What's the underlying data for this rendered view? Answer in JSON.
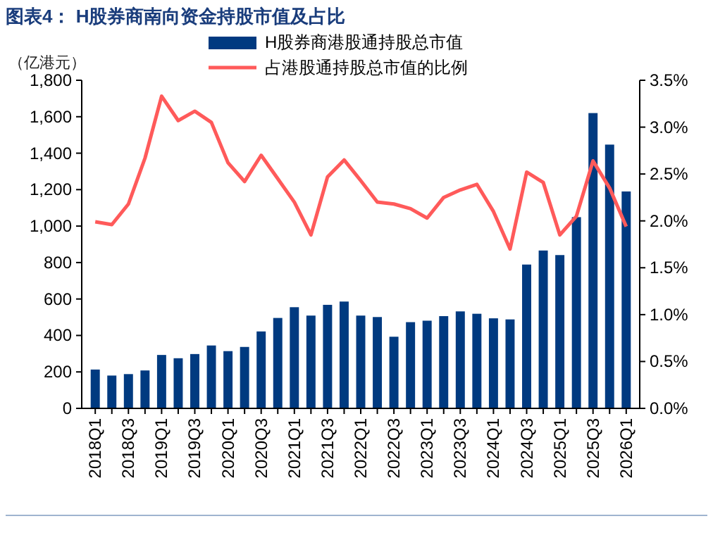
{
  "chart_data": {
    "type": "bar",
    "title": "图表4： H股券商南向资金持股市值及占比",
    "ylabel": "（亿港元）",
    "categories": [
      "2018Q1",
      null,
      "2018Q3",
      null,
      "2019Q1",
      null,
      "2019Q3",
      null,
      "2020Q1",
      null,
      "2020Q3",
      null,
      "2021Q1",
      null,
      "2021Q3",
      null,
      "2022Q1",
      null,
      "2022Q3",
      null,
      "2023Q1",
      null,
      "2023Q3",
      null,
      "2024Q1",
      null,
      "2024Q3",
      null,
      "2025Q1",
      null,
      "2025Q3",
      null,
      "2026Q1"
    ],
    "series": [
      {
        "name": "H股券商港股通持股总市值",
        "color": "#003a80",
        "values": [
          213,
          180,
          188,
          208,
          293,
          275,
          298,
          345,
          314,
          337,
          422,
          496,
          555,
          509,
          568,
          586,
          509,
          501,
          393,
          473,
          481,
          506,
          532,
          519,
          494,
          488,
          789,
          866,
          841,
          1049,
          1620,
          1447,
          1190
        ]
      },
      {
        "name": "占港股通持股总市值的比例",
        "type": "line",
        "axis": "y2",
        "color": "#ff5a5a",
        "values": [
          1.99,
          1.96,
          2.18,
          2.67,
          3.33,
          3.07,
          3.17,
          3.05,
          2.62,
          2.42,
          2.7,
          2.45,
          2.2,
          1.85,
          2.47,
          2.65,
          2.43,
          2.2,
          2.18,
          2.13,
          2.03,
          2.25,
          2.33,
          2.39,
          2.1,
          1.7,
          2.52,
          2.41,
          1.85,
          2.05,
          2.64,
          2.35,
          1.94
        ]
      }
    ],
    "ylim": [
      0,
      1800
    ],
    "yticks": [
      {
        "value": 0,
        "label": "0"
      },
      {
        "value": 200,
        "label": "200"
      },
      {
        "value": 400,
        "label": "400"
      },
      {
        "value": 600,
        "label": "600"
      },
      {
        "value": 800,
        "label": "800"
      },
      {
        "value": 1000,
        "label": "1,000"
      },
      {
        "value": 1200,
        "label": "1,200"
      },
      {
        "value": 1400,
        "label": "1,400"
      },
      {
        "value": 1600,
        "label": "1,600"
      },
      {
        "value": 1800,
        "label": "1,800"
      }
    ],
    "y2lim": [
      0,
      3.5
    ],
    "y2ticks": [
      {
        "value": 0,
        "label": "0.0%"
      },
      {
        "value": 0.5,
        "label": "0.5%"
      },
      {
        "value": 1,
        "label": "1.0%"
      },
      {
        "value": 1.5,
        "label": "1.5%"
      },
      {
        "value": 2,
        "label": "2.0%"
      },
      {
        "value": 2.5,
        "label": "2.5%"
      },
      {
        "value": 3,
        "label": "3.0%"
      },
      {
        "value": 3.5,
        "label": "3.5%"
      }
    ],
    "grid": false,
    "legend": "top",
    "marker": "none",
    "line_style": "solid"
  }
}
